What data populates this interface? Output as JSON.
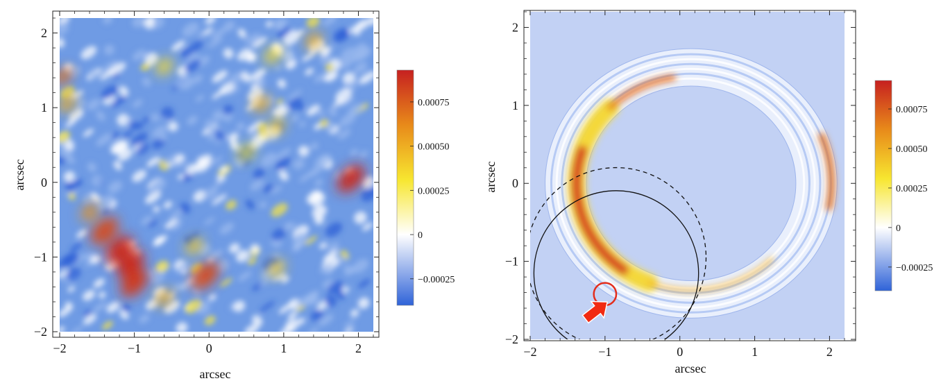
{
  "chart_data": [
    {
      "type": "heatmap",
      "xlabel": "arcsec",
      "ylabel": "arcsec",
      "xlim": [
        -2,
        2.2
      ],
      "ylim": [
        -2,
        2.2
      ],
      "x_ticks": [
        "−2",
        "−1",
        "0",
        "1",
        "2"
      ],
      "y_ticks": [
        "−2",
        "−1",
        "0",
        "1",
        "2"
      ],
      "colorbar": {
        "range": [
          -0.0004,
          0.00093
        ],
        "ticks": [
          "−0.00025",
          "0",
          "0.00025",
          "0.00050",
          "0.00075"
        ],
        "tick_values": [
          -0.00025,
          0,
          0.00025,
          0.0005,
          0.00075
        ],
        "colormap": [
          "#2f63d8",
          "#ffffff",
          "#f7e630",
          "#e88a1a",
          "#c62020"
        ]
      },
      "background_color": "#6f9be4",
      "features": [
        {
          "x": -1.2,
          "y": -0.9,
          "value": 0.0009
        },
        {
          "x": -1.05,
          "y": -1.1,
          "value": 0.0009
        },
        {
          "x": -1.4,
          "y": -0.65,
          "value": 0.0008
        },
        {
          "x": -1.0,
          "y": -1.35,
          "value": 0.00085
        },
        {
          "x": 1.9,
          "y": 0.05,
          "value": 0.0009
        },
        {
          "x": -0.05,
          "y": -1.25,
          "value": 0.0008
        },
        {
          "x": -1.95,
          "y": 1.42,
          "value": 0.0007
        },
        {
          "x": -1.6,
          "y": -0.4,
          "value": 0.0006
        },
        {
          "x": -0.6,
          "y": -1.55,
          "value": 0.0005
        },
        {
          "x": -1.9,
          "y": 1.05,
          "value": 0.0005
        },
        {
          "x": 0.7,
          "y": 1.05,
          "value": 0.0005
        },
        {
          "x": 1.4,
          "y": 1.9,
          "value": 0.0005
        },
        {
          "x": 0.9,
          "y": 0.75,
          "value": 0.0004
        },
        {
          "x": -0.2,
          "y": -0.85,
          "value": 0.0004
        },
        {
          "x": 0.9,
          "y": -1.15,
          "value": 0.0004
        },
        {
          "x": 0.85,
          "y": 1.7,
          "value": 0.00035
        },
        {
          "x": -0.6,
          "y": 1.55,
          "value": 0.00035
        },
        {
          "x": 0.5,
          "y": 0.4,
          "value": 0.0003
        }
      ]
    },
    {
      "type": "heatmap",
      "xlabel": "arcsec",
      "ylabel": "arcsec",
      "xlim": [
        -2,
        2.2
      ],
      "ylim": [
        -2,
        2.2
      ],
      "x_ticks": [
        "−2",
        "−1",
        "0",
        "1",
        "2"
      ],
      "y_ticks": [
        "−2",
        "−1",
        "0",
        "1",
        "2"
      ],
      "colorbar": {
        "range": [
          -0.0004,
          0.00093
        ],
        "ticks": [
          "−0.00025",
          "0",
          "0.00025",
          "0.00050",
          "0.00075"
        ],
        "tick_values": [
          -0.00025,
          0,
          0.00025,
          0.0005,
          0.00075
        ],
        "colormap": [
          "#2f63d8",
          "#ffffff",
          "#f7e630",
          "#e88a1a",
          "#c62020"
        ]
      },
      "background_color": "#c2d1f4",
      "ring": {
        "cx": 0.15,
        "cy": 0.0,
        "rx_outer": 1.95,
        "ry_outer": 1.8,
        "rx_inner": 1.4,
        "ry_inner": 1.3
      },
      "arcs": [
        {
          "shape": "solid-circle",
          "cx": -0.85,
          "cy": -1.15,
          "r": 1.1
        },
        {
          "shape": "dashed-circle",
          "cx": -0.85,
          "cy": -0.95,
          "r": 1.2
        },
        {
          "shape": "highlight-circle",
          "cx": -1.0,
          "cy": -1.42,
          "r": 0.15,
          "color": "#e32d1c"
        }
      ],
      "arrow": {
        "x": -1.15,
        "y": -1.58,
        "color": "#f12a12"
      }
    }
  ]
}
